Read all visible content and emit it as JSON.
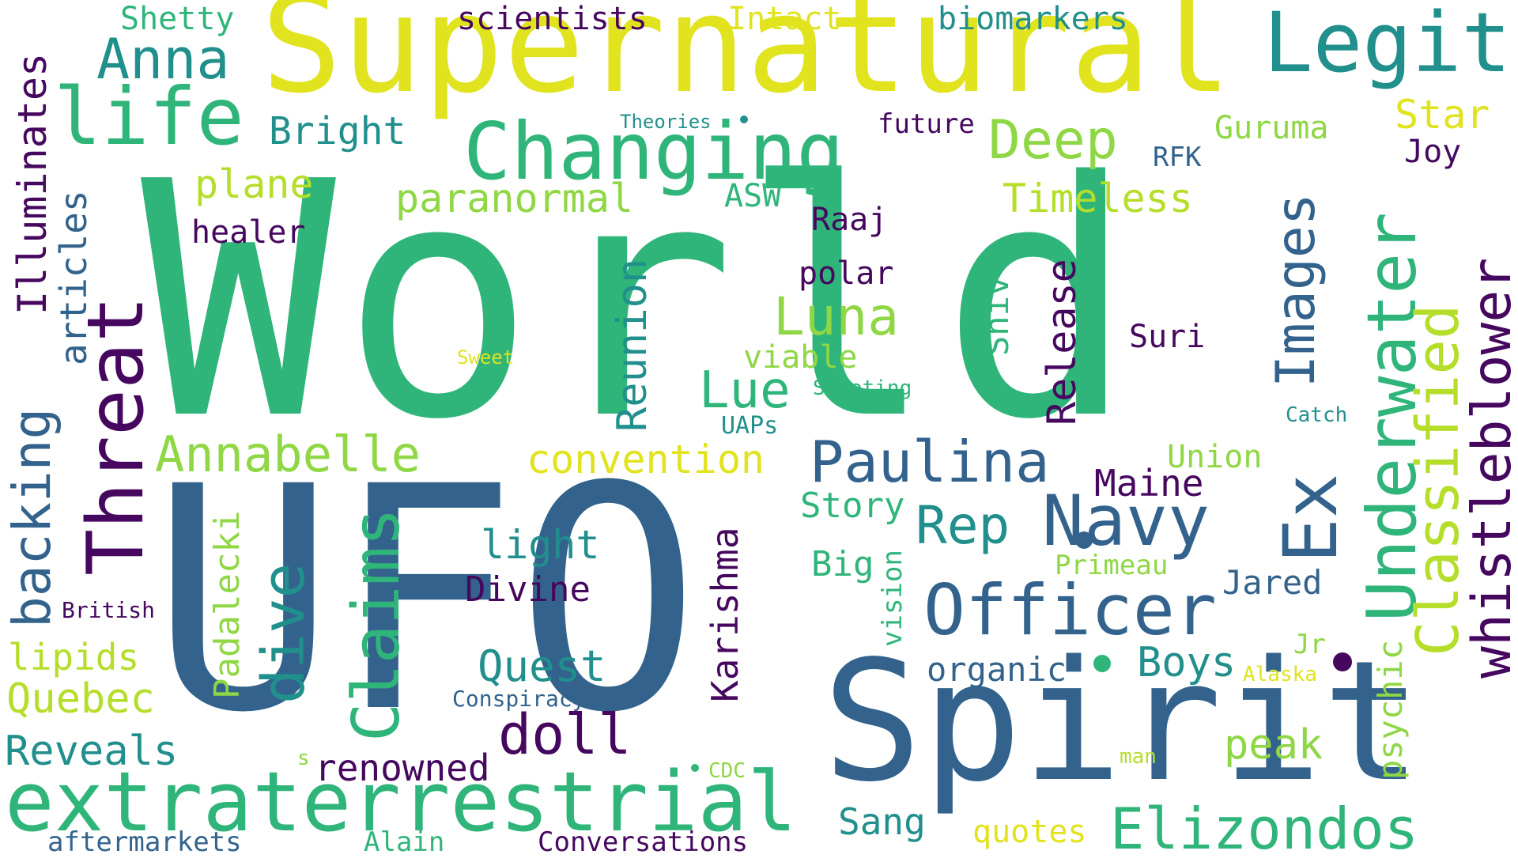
{
  "title": "",
  "colors": {
    "background": "#ffffff",
    "indigo": "#46085f",
    "steel_blue": "#33638d",
    "teal": "#218f8c",
    "sea_green": "#2fb57a",
    "green": "#32b67a",
    "lime": "#8fd744",
    "yellow_green": "#b5de2b",
    "yellow": "#e0e31e"
  },
  "words": [
    {
      "id": "world",
      "text": "World",
      "color": "#2fb57a"
    },
    {
      "id": "ufo",
      "text": "UFO",
      "color": "#33638d"
    },
    {
      "id": "supernatural",
      "text": "Supernatural",
      "color": "#e0e31e"
    },
    {
      "id": "spirit",
      "text": "Spirit",
      "color": "#33638d"
    },
    {
      "id": "extraterrestrial",
      "text": "extraterrestrial",
      "color": "#2fb57a"
    },
    {
      "id": "changing",
      "text": "Changing",
      "color": "#2fb57a"
    },
    {
      "id": "legit",
      "text": "Legit",
      "color": "#218f8c"
    },
    {
      "id": "life",
      "text": "life",
      "color": "#2fb57a"
    },
    {
      "id": "anna",
      "text": "Anna",
      "color": "#218f8c"
    },
    {
      "id": "shetty",
      "text": "Shetty",
      "color": "#2fb57a"
    },
    {
      "id": "scientists",
      "text": "scientists",
      "color": "#46085f"
    },
    {
      "id": "intact",
      "text": "Intact",
      "color": "#e0e31e"
    },
    {
      "id": "biomarkers",
      "text": "biomarkers",
      "color": "#218f8c"
    },
    {
      "id": "bright",
      "text": "Bright",
      "color": "#218f8c"
    },
    {
      "id": "theories",
      "text": "Theories",
      "color": "#218f8c"
    },
    {
      "id": "future",
      "text": "future",
      "color": "#46085f"
    },
    {
      "id": "guruma",
      "text": "Guruma",
      "color": "#8fd744"
    },
    {
      "id": "star",
      "text": "Star",
      "color": "#e0e31e"
    },
    {
      "id": "deep",
      "text": "Deep",
      "color": "#8fd744"
    },
    {
      "id": "rfk",
      "text": "RFK",
      "color": "#33638d"
    },
    {
      "id": "joy",
      "text": "Joy",
      "color": "#46085f"
    },
    {
      "id": "plane",
      "text": "plane",
      "color": "#b5de2b"
    },
    {
      "id": "paranormal",
      "text": "paranormal",
      "color": "#8fd744"
    },
    {
      "id": "asw",
      "text": "ASW",
      "color": "#2fb57a"
    },
    {
      "id": "timeless",
      "text": "Timeless",
      "color": "#b5de2b"
    },
    {
      "id": "healer",
      "text": "healer",
      "color": "#46085f"
    },
    {
      "id": "raaj",
      "text": "Raaj",
      "color": "#46085f"
    },
    {
      "id": "polar",
      "text": "polar",
      "color": "#46085f"
    },
    {
      "id": "luna",
      "text": "Luna",
      "color": "#8fd744"
    },
    {
      "id": "suri",
      "text": "Suri",
      "color": "#46085f"
    },
    {
      "id": "sweet",
      "text": "Sweet",
      "color": "#e0e31e"
    },
    {
      "id": "viable",
      "text": "viable",
      "color": "#8fd744"
    },
    {
      "id": "lue",
      "text": "Lue",
      "color": "#2fb57a"
    },
    {
      "id": "shooting",
      "text": "Shooting",
      "color": "#2fb57a"
    },
    {
      "id": "uaps",
      "text": "UAPs",
      "color": "#218f8c"
    },
    {
      "id": "catch",
      "text": "Catch",
      "color": "#218f8c"
    },
    {
      "id": "annabelle",
      "text": "Annabelle",
      "color": "#8fd744"
    },
    {
      "id": "convention",
      "text": "convention",
      "color": "#e0e31e"
    },
    {
      "id": "paulina",
      "text": "Paulina",
      "color": "#33638d"
    },
    {
      "id": "union",
      "text": "Union",
      "color": "#8fd744"
    },
    {
      "id": "maine",
      "text": "Maine",
      "color": "#46085f"
    },
    {
      "id": "story",
      "text": "Story",
      "color": "#2fb57a"
    },
    {
      "id": "rep",
      "text": "Rep",
      "color": "#218f8c"
    },
    {
      "id": "navy",
      "text": "Navy",
      "color": "#33638d"
    },
    {
      "id": "light",
      "text": "light",
      "color": "#218f8c"
    },
    {
      "id": "big",
      "text": "Big",
      "color": "#2fb57a"
    },
    {
      "id": "primeau",
      "text": "Primeau",
      "color": "#8fd744"
    },
    {
      "id": "jared",
      "text": "Jared",
      "color": "#33638d"
    },
    {
      "id": "divine",
      "text": "Divine",
      "color": "#46085f"
    },
    {
      "id": "officer",
      "text": "Officer",
      "color": "#33638d"
    },
    {
      "id": "british",
      "text": "British",
      "color": "#46085f"
    },
    {
      "id": "lipids",
      "text": "lipids",
      "color": "#b5de2b"
    },
    {
      "id": "quest",
      "text": "Quest",
      "color": "#218f8c"
    },
    {
      "id": "organic",
      "text": "organic",
      "color": "#33638d"
    },
    {
      "id": "boys",
      "text": "Boys",
      "color": "#218f8c"
    },
    {
      "id": "jr",
      "text": "Jr",
      "color": "#8fd744"
    },
    {
      "id": "alaska",
      "text": "Alaska",
      "color": "#e0e31e"
    },
    {
      "id": "quebec",
      "text": "Quebec",
      "color": "#b5de2b"
    },
    {
      "id": "conspiracy",
      "text": "Conspiracy",
      "color": "#33638d"
    },
    {
      "id": "doll",
      "text": "doll",
      "color": "#46085f"
    },
    {
      "id": "reveals",
      "text": "Reveals",
      "color": "#218f8c"
    },
    {
      "id": "s",
      "text": "s",
      "color": "#8fd744"
    },
    {
      "id": "renowned",
      "text": "renowned",
      "color": "#46085f"
    },
    {
      "id": "cdc",
      "text": "CDC",
      "color": "#8fd744"
    },
    {
      "id": "man",
      "text": "man",
      "color": "#b5de2b"
    },
    {
      "id": "peak",
      "text": "peak",
      "color": "#8fd744"
    },
    {
      "id": "sang",
      "text": "Sang",
      "color": "#218f8c"
    },
    {
      "id": "quotes",
      "text": "quotes",
      "color": "#e0e31e"
    },
    {
      "id": "elizondos",
      "text": "Elizondos",
      "color": "#2fb57a"
    },
    {
      "id": "aftermarkets",
      "text": "aftermarkets",
      "color": "#33638d"
    },
    {
      "id": "alain",
      "text": "Alain",
      "color": "#2fb57a"
    },
    {
      "id": "conversations",
      "text": "Conversations",
      "color": "#46085f"
    },
    {
      "id": "illuminates",
      "text": "Illuminates",
      "color": "#46085f"
    },
    {
      "id": "articles",
      "text": "articles",
      "color": "#33638d"
    },
    {
      "id": "backing",
      "text": "backing",
      "color": "#33638d"
    },
    {
      "id": "threat",
      "text": "Threat",
      "color": "#46085f"
    },
    {
      "id": "reunion",
      "text": "Reunion",
      "color": "#218f8c"
    },
    {
      "id": "release",
      "text": "Release",
      "color": "#46085f"
    },
    {
      "id": "shiv",
      "text": "Shiv",
      "color": "#2fb57a"
    },
    {
      "id": "images",
      "text": "Images",
      "color": "#33638d"
    },
    {
      "id": "ex",
      "text": "Ex",
      "color": "#33638d"
    },
    {
      "id": "underwater",
      "text": "Underwater",
      "color": "#2fb57a"
    },
    {
      "id": "classified",
      "text": "Classified",
      "color": "#b5de2b"
    },
    {
      "id": "whistleblower",
      "text": "whistleblower",
      "color": "#46085f"
    },
    {
      "id": "claims",
      "text": "Claims",
      "color": "#2fb57a"
    },
    {
      "id": "dive",
      "text": "dive",
      "color": "#218f8c"
    },
    {
      "id": "padalecki",
      "text": "Padalecki",
      "color": "#8fd744"
    },
    {
      "id": "karishma",
      "text": "Karishma",
      "color": "#46085f"
    },
    {
      "id": "vision",
      "text": "vision",
      "color": "#2fb57a"
    },
    {
      "id": "psychic",
      "text": "psychic",
      "color": "#8fd744"
    }
  ]
}
